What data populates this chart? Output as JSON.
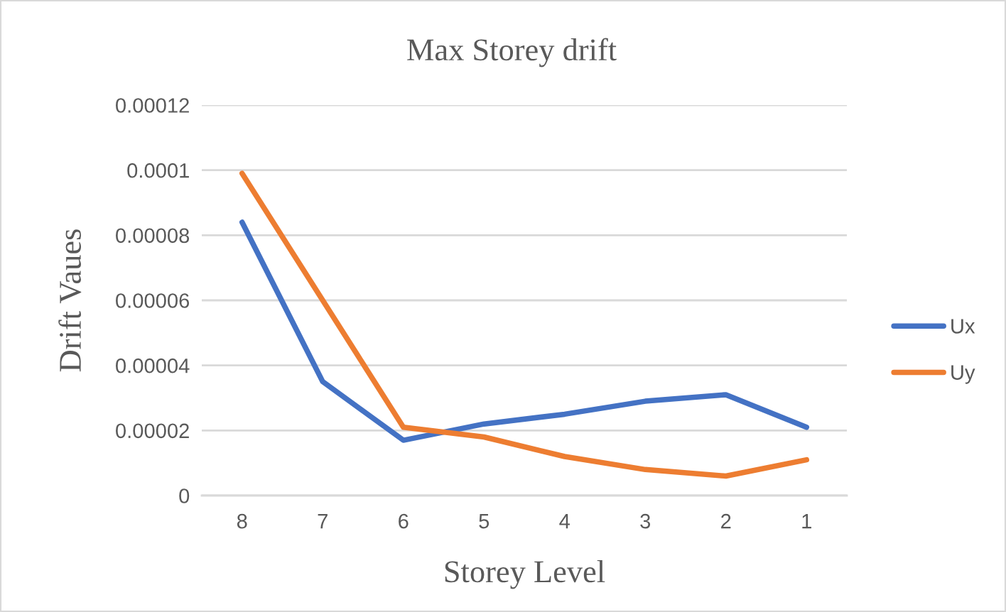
{
  "chart_data": {
    "type": "line",
    "title": "Max Storey drift",
    "xlabel": "Storey Level",
    "ylabel": "Drift Vaues",
    "categories": [
      "8",
      "7",
      "6",
      "5",
      "4",
      "3",
      "2",
      "1"
    ],
    "series": [
      {
        "name": "Ux",
        "color": "#4472c4",
        "values": [
          8.4e-05,
          3.5e-05,
          1.7e-05,
          2.2e-05,
          2.5e-05,
          2.9e-05,
          3.1e-05,
          2.1e-05
        ]
      },
      {
        "name": "Uy",
        "color": "#ed7d31",
        "values": [
          9.9e-05,
          6e-05,
          2.1e-05,
          1.8e-05,
          1.2e-05,
          8e-06,
          6e-06,
          1.1e-05
        ]
      }
    ],
    "ylim": [
      0,
      0.00012
    ],
    "yticks": [
      0,
      {
        "value": 2e-05,
        "label": "0.00002"
      },
      {
        "value": 4e-05,
        "label": "0.00004"
      },
      {
        "value": 6e-05,
        "label": "0.00006"
      },
      {
        "value": 8e-05,
        "label": "0.00008"
      },
      0.0001,
      0.00012
    ],
    "grid": "y",
    "legend": "right",
    "line_style": "solid"
  }
}
